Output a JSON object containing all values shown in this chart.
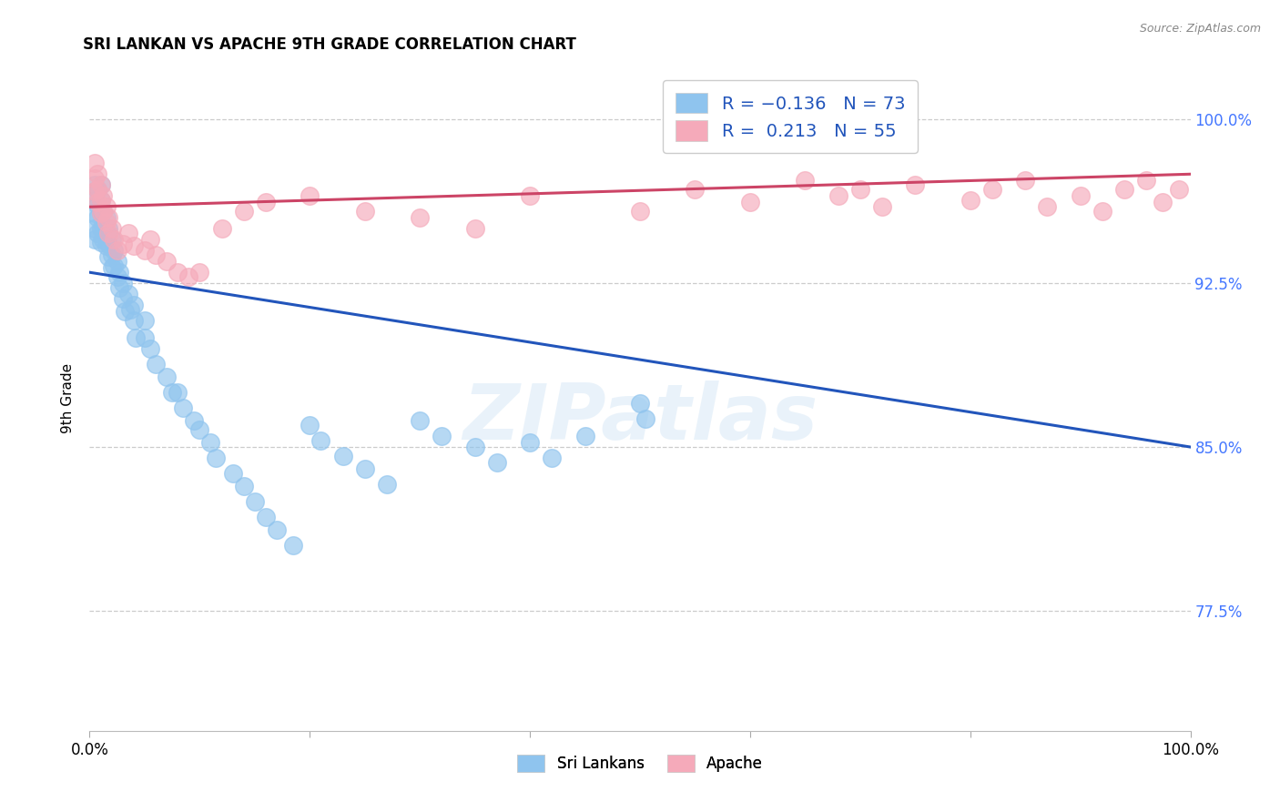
{
  "title": "SRI LANKAN VS APACHE 9TH GRADE CORRELATION CHART",
  "source": "Source: ZipAtlas.com",
  "ylabel": "9th Grade",
  "ytick_vals": [
    1.0,
    0.925,
    0.85,
    0.775
  ],
  "ytick_labels": [
    "100.0%",
    "92.5%",
    "85.0%",
    "77.5%"
  ],
  "xmin": 0.0,
  "xmax": 1.0,
  "ymin": 0.72,
  "ymax": 1.025,
  "sri_lankan_color": "#8fc4ee",
  "apache_color": "#f5aaba",
  "sri_lankan_line_color": "#2255bb",
  "apache_line_color": "#cc4466",
  "watermark_text": "ZIPatlas",
  "blue_line_x": [
    0.0,
    1.0
  ],
  "blue_line_y": [
    0.93,
    0.85
  ],
  "pink_line_x": [
    0.0,
    1.0
  ],
  "pink_line_y": [
    0.96,
    0.975
  ],
  "sri_lankans_x": [
    0.005,
    0.005,
    0.005,
    0.005,
    0.005,
    0.007,
    0.007,
    0.007,
    0.007,
    0.01,
    0.01,
    0.01,
    0.01,
    0.01,
    0.012,
    0.012,
    0.012,
    0.015,
    0.015,
    0.015,
    0.017,
    0.017,
    0.017,
    0.02,
    0.02,
    0.02,
    0.022,
    0.022,
    0.025,
    0.025,
    0.027,
    0.027,
    0.03,
    0.03,
    0.032,
    0.035,
    0.037,
    0.04,
    0.04,
    0.042,
    0.05,
    0.05,
    0.055,
    0.06,
    0.07,
    0.075,
    0.08,
    0.085,
    0.095,
    0.1,
    0.11,
    0.115,
    0.13,
    0.14,
    0.15,
    0.16,
    0.17,
    0.185,
    0.2,
    0.21,
    0.23,
    0.25,
    0.27,
    0.3,
    0.32,
    0.35,
    0.37,
    0.4,
    0.42,
    0.45,
    0.5,
    0.505
  ],
  "sri_lankans_y": [
    0.97,
    0.963,
    0.957,
    0.95,
    0.945,
    0.968,
    0.961,
    0.955,
    0.948,
    0.97,
    0.963,
    0.957,
    0.95,
    0.944,
    0.958,
    0.951,
    0.945,
    0.955,
    0.948,
    0.942,
    0.95,
    0.943,
    0.937,
    0.945,
    0.938,
    0.932,
    0.94,
    0.933,
    0.935,
    0.928,
    0.93,
    0.923,
    0.925,
    0.918,
    0.912,
    0.92,
    0.913,
    0.915,
    0.908,
    0.9,
    0.908,
    0.9,
    0.895,
    0.888,
    0.882,
    0.875,
    0.875,
    0.868,
    0.862,
    0.858,
    0.852,
    0.845,
    0.838,
    0.832,
    0.825,
    0.818,
    0.812,
    0.805,
    0.86,
    0.853,
    0.846,
    0.84,
    0.833,
    0.862,
    0.855,
    0.85,
    0.843,
    0.852,
    0.845,
    0.855,
    0.87,
    0.863
  ],
  "apache_x": [
    0.005,
    0.005,
    0.005,
    0.007,
    0.007,
    0.007,
    0.01,
    0.01,
    0.01,
    0.012,
    0.012,
    0.015,
    0.015,
    0.017,
    0.017,
    0.02,
    0.022,
    0.025,
    0.03,
    0.035,
    0.04,
    0.05,
    0.055,
    0.06,
    0.07,
    0.08,
    0.09,
    0.1,
    0.12,
    0.14,
    0.16,
    0.2,
    0.25,
    0.3,
    0.35,
    0.4,
    0.5,
    0.55,
    0.6,
    0.65,
    0.68,
    0.7,
    0.72,
    0.75,
    0.8,
    0.82,
    0.85,
    0.87,
    0.9,
    0.92,
    0.94,
    0.96,
    0.975,
    0.99
  ],
  "apache_y": [
    0.98,
    0.973,
    0.967,
    0.975,
    0.968,
    0.962,
    0.97,
    0.963,
    0.957,
    0.965,
    0.958,
    0.96,
    0.953,
    0.955,
    0.948,
    0.95,
    0.945,
    0.94,
    0.943,
    0.948,
    0.942,
    0.94,
    0.945,
    0.938,
    0.935,
    0.93,
    0.928,
    0.93,
    0.95,
    0.958,
    0.962,
    0.965,
    0.958,
    0.955,
    0.95,
    0.965,
    0.958,
    0.968,
    0.962,
    0.972,
    0.965,
    0.968,
    0.96,
    0.97,
    0.963,
    0.968,
    0.972,
    0.96,
    0.965,
    0.958,
    0.968,
    0.972,
    0.962,
    0.968
  ]
}
